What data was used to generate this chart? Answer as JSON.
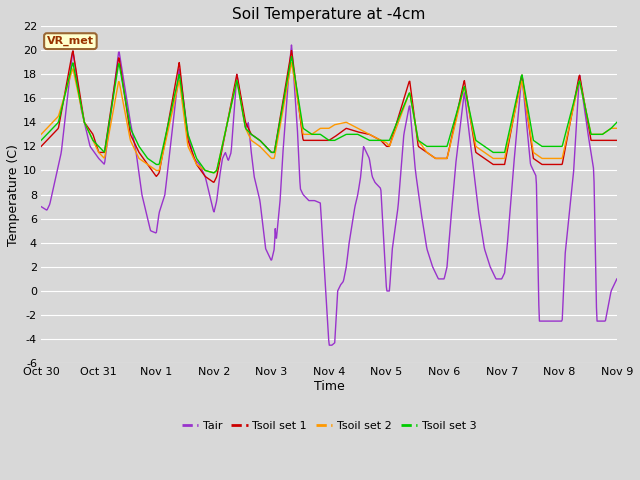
{
  "title": "Soil Temperature at -4cm",
  "xlabel": "Time",
  "ylabel": "Temperature (C)",
  "ylim": [
    -6,
    22
  ],
  "yticks": [
    -6,
    -4,
    -2,
    0,
    2,
    4,
    6,
    8,
    10,
    12,
    14,
    16,
    18,
    20,
    22
  ],
  "x_labels": [
    "Oct 30",
    "Oct 31",
    "Nov 1",
    "Nov 2",
    "Nov 3",
    "Nov 4",
    "Nov 5",
    "Nov 6",
    "Nov 7",
    "Nov 8",
    "Nov 9"
  ],
  "colors": {
    "Tair": "#9933cc",
    "Tsoil1": "#cc0000",
    "Tsoil2": "#ff9900",
    "Tsoil3": "#00cc00"
  },
  "background_color": "#d8d8d8",
  "plot_bg_color": "#d8d8d8",
  "grid_color": "#ffffff",
  "annotation_box": {
    "text": "VR_met"
  },
  "legend_entries": [
    "Tair",
    "Tsoil set 1",
    "Tsoil set 2",
    "Tsoil set 3"
  ],
  "figsize": [
    6.4,
    4.8
  ],
  "dpi": 100
}
